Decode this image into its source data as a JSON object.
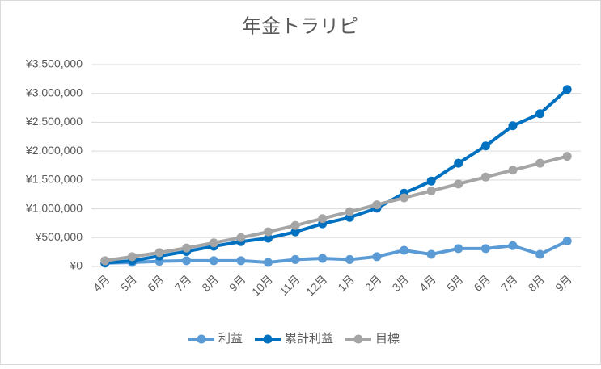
{
  "chart_data": {
    "type": "line",
    "title": "年金トラリピ",
    "categories": [
      "4月",
      "5月",
      "6月",
      "7月",
      "8月",
      "9月",
      "10月",
      "11月",
      "12月",
      "1月",
      "2月",
      "3月",
      "4月",
      "5月",
      "6月",
      "7月",
      "8月",
      "9月"
    ],
    "series": [
      {
        "name": "利益",
        "color": "#5b9bd5",
        "values": [
          60000,
          70000,
          90000,
          100000,
          100000,
          100000,
          70000,
          120000,
          140000,
          120000,
          170000,
          280000,
          210000,
          310000,
          310000,
          360000,
          210000,
          440000
        ]
      },
      {
        "name": "累計利益",
        "color": "#0070c0",
        "values": [
          60000,
          100000,
          180000,
          260000,
          350000,
          430000,
          490000,
          600000,
          740000,
          850000,
          1010000,
          1270000,
          1480000,
          1790000,
          2090000,
          2440000,
          2650000,
          3070000
        ]
      },
      {
        "name": "目標",
        "color": "#a5a5a5",
        "values": [
          100000,
          170000,
          240000,
          320000,
          410000,
          500000,
          600000,
          710000,
          830000,
          950000,
          1070000,
          1190000,
          1310000,
          1430000,
          1550000,
          1670000,
          1790000,
          1910000
        ]
      }
    ],
    "ylim": [
      0,
      3500000
    ],
    "yticks": [
      {
        "value": 0,
        "label": "¥0"
      },
      {
        "value": 500000,
        "label": "¥500,000"
      },
      {
        "value": 1000000,
        "label": "¥1,000,000"
      },
      {
        "value": 1500000,
        "label": "¥1,500,000"
      },
      {
        "value": 2000000,
        "label": "¥2,000,000"
      },
      {
        "value": 2500000,
        "label": "¥2,500,000"
      },
      {
        "value": 3000000,
        "label": "¥3,000,000"
      },
      {
        "value": 3500000,
        "label": "¥3,500,000"
      }
    ],
    "grid": true,
    "legend": "bottom"
  }
}
